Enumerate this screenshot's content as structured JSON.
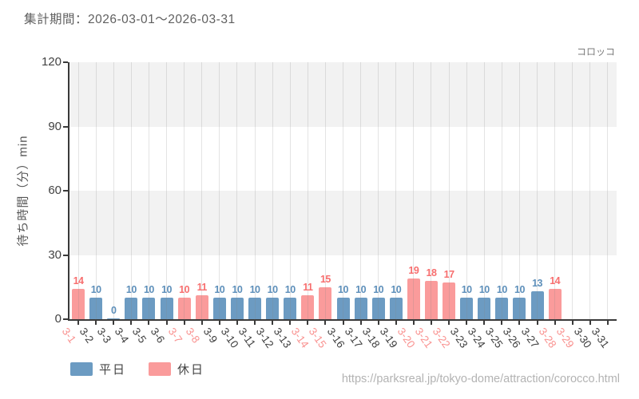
{
  "header": {
    "title": "集計期間：2026-03-01～2026-03-31"
  },
  "footer": {
    "source_url": "https://parksreal.jp/tokyo-dome/attraction/corocco.html"
  },
  "chart_data": {
    "type": "bar",
    "title": "集計期間：2026-03-01～2026-03-31",
    "annotation": "コロッコ",
    "xlabel": "",
    "ylabel": "待ち時間（分）min",
    "ylim": [
      0,
      120
    ],
    "yticks": [
      0,
      30,
      60,
      90,
      120
    ],
    "grid": "horizontal-bands-and-vertical-lines",
    "legend_position": "bottom-left",
    "categories": [
      "3-1",
      "3-2",
      "3-3",
      "3-4",
      "3-5",
      "3-6",
      "3-7",
      "3-8",
      "3-9",
      "3-10",
      "3-11",
      "3-12",
      "3-13",
      "3-14",
      "3-15",
      "3-16",
      "3-17",
      "3-18",
      "3-19",
      "3-20",
      "3-21",
      "3-22",
      "3-23",
      "3-24",
      "3-25",
      "3-26",
      "3-27",
      "3-28",
      "3-29",
      "3-30",
      "3-31"
    ],
    "values": [
      14,
      10,
      0,
      10,
      10,
      10,
      10,
      11,
      10,
      10,
      10,
      10,
      10,
      11,
      15,
      10,
      10,
      10,
      10,
      19,
      18,
      17,
      10,
      10,
      10,
      10,
      13,
      14,
      null,
      null,
      null
    ],
    "day_types": [
      "holiday",
      "weekday",
      "weekday",
      "weekday",
      "weekday",
      "weekday",
      "holiday",
      "holiday",
      "weekday",
      "weekday",
      "weekday",
      "weekday",
      "weekday",
      "holiday",
      "holiday",
      "weekday",
      "weekday",
      "weekday",
      "weekday",
      "holiday",
      "holiday",
      "holiday",
      "weekday",
      "weekday",
      "weekday",
      "weekday",
      "weekday",
      "holiday",
      "holiday",
      "weekday",
      "weekday"
    ],
    "legend": [
      {
        "key": "weekday",
        "label": "平日"
      },
      {
        "key": "holiday",
        "label": "休日"
      }
    ],
    "colors": {
      "weekday_bar": "#6c9bc2",
      "holiday_bar": "#fa9b9b",
      "weekday_value_label": "#5d8fba",
      "holiday_value_label": "#f76e6e",
      "weekday_tick_label": "#3d3d3d",
      "holiday_tick_label": "#f9918f",
      "band": "#f2f2f2",
      "axis": "#3a3a3a"
    }
  }
}
